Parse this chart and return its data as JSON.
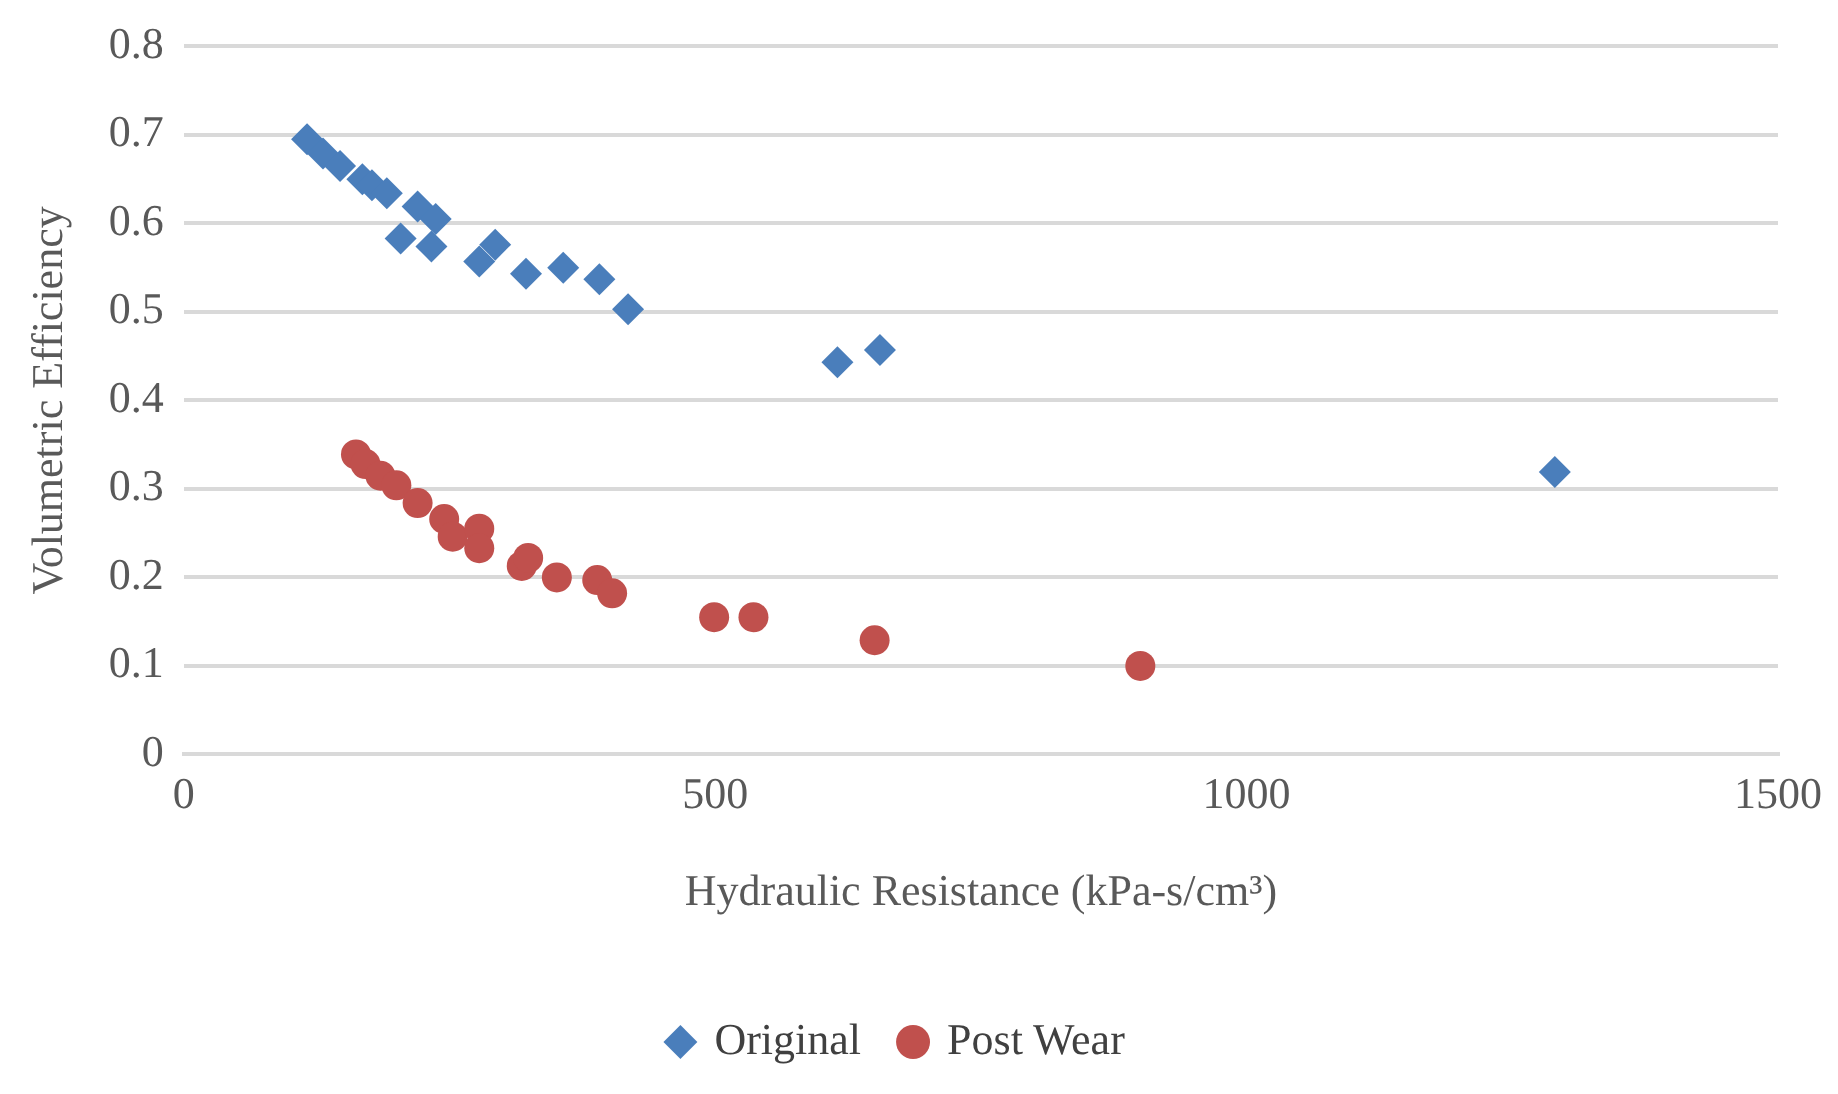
{
  "chart_data": {
    "type": "scatter",
    "xlabel": "Hydraulic Resistance (kPa-s/cm³)",
    "ylabel": "Volumetric Efficiency",
    "xlim": [
      0,
      1500
    ],
    "xticks": [
      0,
      500,
      1000,
      1500
    ],
    "ylim": [
      0,
      0.8
    ],
    "yticks": [
      0,
      0.1,
      0.2,
      0.3,
      0.4,
      0.5,
      0.6,
      0.7,
      0.8
    ],
    "grid": "y",
    "legend": "bottom",
    "series": [
      {
        "name": "Original",
        "color": "#4a7ebb",
        "marker": "diamond",
        "x": [
          116,
          131,
          147,
          168,
          177,
          191,
          220,
          237,
          204,
          233,
          278,
          293,
          322,
          357,
          391,
          418,
          615,
          655,
          1290
        ],
        "values": [
          0.695,
          0.679,
          0.665,
          0.65,
          0.643,
          0.634,
          0.619,
          0.605,
          0.583,
          0.574,
          0.557,
          0.576,
          0.543,
          0.55,
          0.537,
          0.503,
          0.443,
          0.457,
          0.319
        ]
      },
      {
        "name": "Post Wear",
        "color": "#c0504d",
        "marker": "circle",
        "x": [
          162,
          171,
          185,
          200,
          220,
          245,
          253,
          278,
          278,
          318,
          324,
          351,
          389,
          403,
          499,
          536,
          650,
          900
        ],
        "values": [
          0.339,
          0.328,
          0.315,
          0.304,
          0.284,
          0.266,
          0.246,
          0.255,
          0.233,
          0.213,
          0.222,
          0.2,
          0.197,
          0.182,
          0.155,
          0.155,
          0.129,
          0.1
        ]
      }
    ]
  }
}
